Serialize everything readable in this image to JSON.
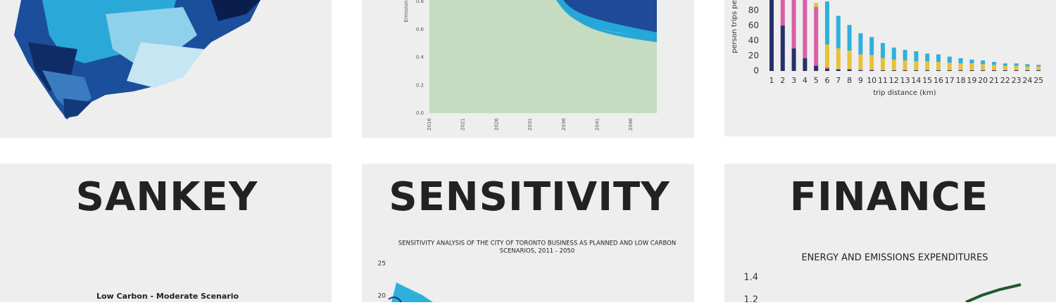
{
  "emissions_tile": {
    "y_axis_label": "Emission",
    "y_ticks": [
      "0.8",
      "0.6",
      "0.4",
      "0.2",
      "0.0"
    ],
    "x_ticks": [
      "2016",
      "2021",
      "2026",
      "2031",
      "2036",
      "2041",
      "2046"
    ]
  },
  "trips_tile": {
    "y_axis_label": "person trips pe",
    "x_axis_label": "trip distance (km)",
    "yticks": [
      0,
      20,
      40,
      60,
      80
    ],
    "categories": [
      1,
      2,
      3,
      4,
      5,
      6,
      7,
      8,
      9,
      10,
      11,
      12,
      13,
      14,
      15,
      16,
      17,
      18,
      19,
      20,
      21,
      22,
      23,
      24,
      25
    ],
    "series": [
      {
        "color": "#27306b",
        "values": [
          120,
          60,
          30,
          17,
          7,
          3,
          2,
          2,
          1,
          1,
          1,
          1,
          1,
          1,
          1,
          1,
          1,
          1,
          1,
          1,
          1,
          1,
          1,
          1,
          1
        ]
      },
      {
        "color": "#d95fa6",
        "values": [
          0,
          60,
          90,
          100,
          78,
          2,
          1,
          1,
          1,
          1,
          0,
          0,
          0,
          0,
          0,
          0,
          0,
          0,
          0,
          0,
          0,
          0,
          0,
          0,
          0
        ]
      },
      {
        "color": "#e6c23a",
        "values": [
          0,
          0,
          0,
          0,
          5,
          30,
          27,
          24,
          20,
          19,
          16,
          14,
          13,
          12,
          12,
          11,
          10,
          9,
          9,
          8,
          7,
          6,
          6,
          5,
          5
        ]
      },
      {
        "color": "#2fb0dc",
        "values": [
          0,
          0,
          0,
          0,
          0,
          57,
          43,
          34,
          28,
          24,
          20,
          16,
          14,
          13,
          10,
          10,
          8,
          7,
          5,
          5,
          4,
          3,
          3,
          3,
          2
        ]
      }
    ]
  },
  "sankey_tile": {
    "title": "SANKEY",
    "subtitle": "Low Carbon - Moderate Scenario"
  },
  "sensitivity_tile": {
    "title": "SENSITIVITY",
    "subtitle_line1": "SENSITIVITY ANALYSIS OF THE CITY OF TORONTO BUSINESS AS PLANNED AND LOW CARBON",
    "subtitle_line2": "SCENARIOS, 2011 - 2050",
    "y_ticks": [
      "25",
      "20"
    ]
  },
  "finance_tile": {
    "title": "FINANCE",
    "subtitle": "ENERGY AND EMISSIONS EXPENDITURES",
    "y_ticks": [
      "1.4",
      "1.2"
    ]
  }
}
